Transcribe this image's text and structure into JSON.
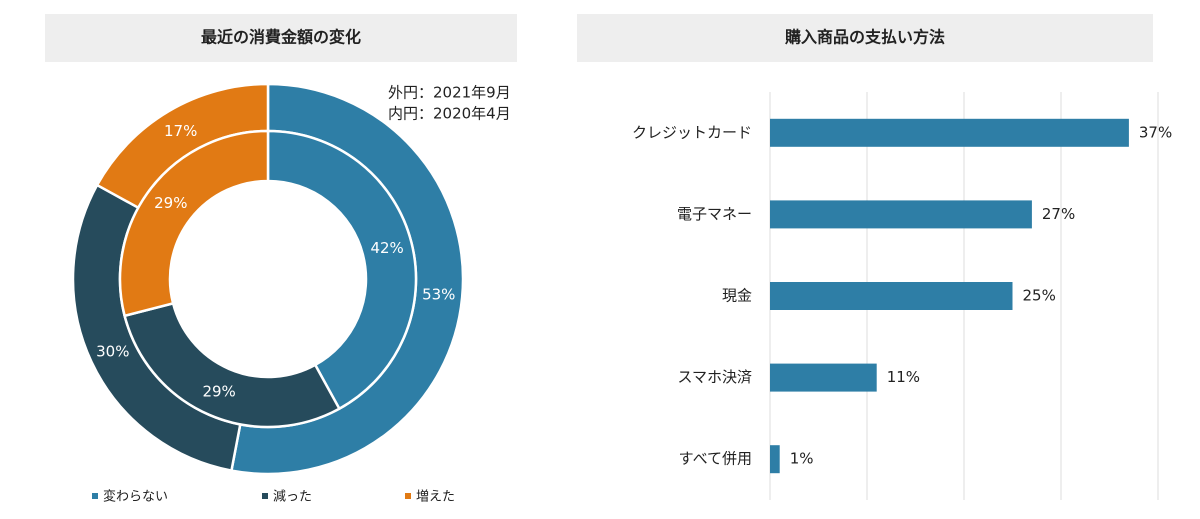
{
  "chart_data": [
    {
      "type": "donut",
      "title": "最近の消費金額の変化",
      "categories": [
        "変わらない",
        "減った",
        "増えた"
      ],
      "colors": [
        "#2e7ea6",
        "#264b5c",
        "#e17a14"
      ],
      "series": [
        {
          "name": "外円：2021年9月",
          "values": [
            53,
            30,
            17
          ],
          "value_labels": [
            "53%",
            "30%",
            "17%"
          ]
        },
        {
          "name": "内円：2020年4月",
          "values": [
            42,
            29,
            29
          ],
          "value_labels": [
            "42%",
            "29%",
            "29%"
          ]
        }
      ]
    },
    {
      "type": "hbar",
      "title": "購入商品の支払い方法",
      "categories": [
        "クレジットカード",
        "電子マネー",
        "現金",
        "スマホ決済",
        "すべて併用"
      ],
      "values": [
        37,
        27,
        25,
        11,
        1
      ],
      "value_labels": [
        "37%",
        "27%",
        "25%",
        "11%",
        "1%"
      ],
      "color": "#2e7ea6",
      "xlim": [
        0,
        40
      ],
      "xticks": [
        0,
        10,
        20,
        30,
        40
      ],
      "grid": true
    }
  ]
}
